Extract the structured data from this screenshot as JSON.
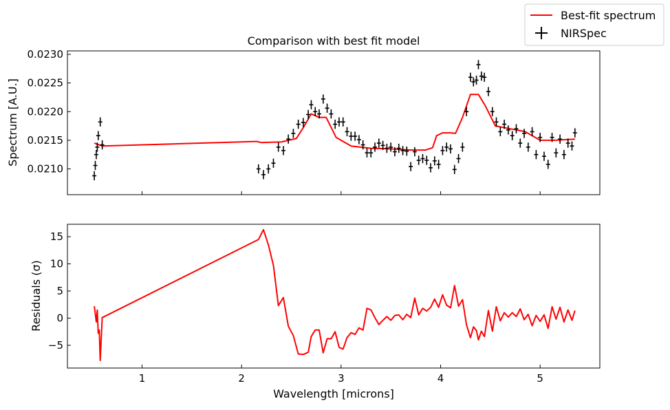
{
  "chart_data": {
    "legend": {
      "placement": "top-right",
      "entries": [
        {
          "label": "Best-fit spectrum",
          "color": "#ff0000",
          "style": "line"
        },
        {
          "label": "NIRSpec",
          "color": "#000000",
          "style": "errorbar"
        }
      ]
    },
    "xlabel": "Wavelength [microns]",
    "xlim": [
      0.25,
      5.6
    ],
    "xticks": [
      1,
      2,
      3,
      4,
      5
    ],
    "xtick_labels": [
      "1",
      "2",
      "3",
      "4",
      "5"
    ],
    "panels": [
      {
        "type": "line",
        "title": "Comparison with best fit model",
        "ylabel": "Spectrum [A.U.]",
        "ylim": [
          0.02055,
          0.02306
        ],
        "yticks": [
          0.021,
          0.0215,
          0.022,
          0.0225,
          0.023
        ],
        "ytick_labels": [
          "0.0210",
          "0.0215",
          "0.0220",
          "0.0225",
          "0.0230"
        ],
        "series": [
          {
            "name": "Best-fit spectrum",
            "color": "#ff0000",
            "x": [
              0.52,
              0.6,
              2.15,
              2.2,
              2.4,
              2.55,
              2.62,
              2.7,
              2.78,
              2.85,
              2.95,
              3.1,
              3.3,
              3.5,
              3.7,
              3.85,
              3.92,
              3.96,
              4.02,
              4.1,
              4.15,
              4.22,
              4.3,
              4.38,
              4.45,
              4.55,
              4.7,
              4.85,
              5.0,
              5.15,
              5.35
            ],
            "y": [
              0.02145,
              0.0214,
              0.02148,
              0.02146,
              0.02147,
              0.02153,
              0.02172,
              0.02196,
              0.0219,
              0.0219,
              0.02155,
              0.0214,
              0.02136,
              0.02135,
              0.02133,
              0.02133,
              0.02137,
              0.02158,
              0.02163,
              0.02163,
              0.02162,
              0.0219,
              0.0223,
              0.0223,
              0.0221,
              0.02175,
              0.0217,
              0.02165,
              0.0215,
              0.0215,
              0.02152
            ]
          },
          {
            "name": "NIRSpec",
            "type": "errorbar",
            "color": "#000000",
            "x": [
              0.52,
              0.53,
              0.54,
              0.55,
              0.56,
              0.58,
              0.6,
              2.17,
              2.22,
              2.27,
              2.32,
              2.37,
              2.42,
              2.47,
              2.52,
              2.57,
              2.62,
              2.67,
              2.7,
              2.74,
              2.78,
              2.82,
              2.86,
              2.9,
              2.94,
              2.98,
              3.02,
              3.06,
              3.1,
              3.14,
              3.18,
              3.22,
              3.26,
              3.3,
              3.34,
              3.38,
              3.42,
              3.46,
              3.5,
              3.54,
              3.58,
              3.62,
              3.66,
              3.7,
              3.74,
              3.78,
              3.82,
              3.86,
              3.9,
              3.94,
              3.98,
              4.02,
              4.06,
              4.1,
              4.14,
              4.18,
              4.22,
              4.26,
              4.3,
              4.33,
              4.36,
              4.38,
              4.41,
              4.44,
              4.48,
              4.52,
              4.56,
              4.6,
              4.64,
              4.68,
              4.72,
              4.76,
              4.8,
              4.84,
              4.88,
              4.92,
              4.96,
              5.0,
              5.04,
              5.08,
              5.12,
              5.16,
              5.2,
              5.24,
              5.28,
              5.32,
              5.35
            ],
            "y": [
              0.02088,
              0.02106,
              0.02125,
              0.02138,
              0.02158,
              0.02182,
              0.02142,
              0.021,
              0.0209,
              0.021,
              0.0211,
              0.02138,
              0.02132,
              0.02152,
              0.02162,
              0.02178,
              0.02181,
              0.02195,
              0.02212,
              0.022,
              0.02196,
              0.02222,
              0.02206,
              0.02196,
              0.02178,
              0.02182,
              0.02182,
              0.02165,
              0.02157,
              0.02157,
              0.02151,
              0.02142,
              0.02128,
              0.02128,
              0.02138,
              0.02145,
              0.02141,
              0.02136,
              0.02138,
              0.0213,
              0.02136,
              0.02132,
              0.02131,
              0.02104,
              0.0213,
              0.02115,
              0.02118,
              0.02115,
              0.02102,
              0.02114,
              0.02108,
              0.02132,
              0.02138,
              0.02135,
              0.02099,
              0.02118,
              0.02138,
              0.022,
              0.0226,
              0.02252,
              0.02255,
              0.02282,
              0.02262,
              0.0226,
              0.02235,
              0.022,
              0.02182,
              0.02165,
              0.02178,
              0.02168,
              0.02158,
              0.0217,
              0.02145,
              0.02162,
              0.02138,
              0.02165,
              0.02125,
              0.02155,
              0.02122,
              0.02108,
              0.02155,
              0.02128,
              0.02152,
              0.02125,
              0.02145,
              0.0214,
              0.02163
            ]
          }
        ]
      },
      {
        "type": "line",
        "title": "",
        "ylabel": "Residuals (σ)",
        "ylim": [
          -9.2,
          17.3
        ],
        "yticks": [
          -5,
          0,
          5,
          10,
          15
        ],
        "ytick_labels": [
          "−5",
          "0",
          "5",
          "10",
          "15"
        ],
        "series": [
          {
            "name": "Residuals",
            "color": "#ff0000",
            "x": [
              0.52,
              0.54,
              0.55,
              0.56,
              0.57,
              0.58,
              0.6,
              2.17,
              2.22,
              2.27,
              2.32,
              2.37,
              2.42,
              2.47,
              2.52,
              2.57,
              2.62,
              2.67,
              2.7,
              2.74,
              2.78,
              2.82,
              2.86,
              2.9,
              2.94,
              2.98,
              3.02,
              3.06,
              3.1,
              3.14,
              3.18,
              3.22,
              3.26,
              3.3,
              3.34,
              3.38,
              3.42,
              3.46,
              3.5,
              3.54,
              3.58,
              3.62,
              3.66,
              3.7,
              3.74,
              3.78,
              3.82,
              3.86,
              3.9,
              3.94,
              3.98,
              4.02,
              4.06,
              4.1,
              4.14,
              4.18,
              4.22,
              4.26,
              4.3,
              4.33,
              4.36,
              4.38,
              4.41,
              4.44,
              4.48,
              4.52,
              4.56,
              4.6,
              4.64,
              4.68,
              4.72,
              4.76,
              4.8,
              4.84,
              4.88,
              4.92,
              4.96,
              5.0,
              5.04,
              5.08,
              5.12,
              5.16,
              5.2,
              5.24,
              5.28,
              5.32,
              5.35
            ],
            "y": [
              2.2,
              -0.7,
              1.5,
              -2.8,
              -2.2,
              -7.8,
              0.1,
              14.5,
              16.3,
              13.5,
              9.7,
              2.3,
              3.8,
              -1.5,
              -3.2,
              -6.6,
              -6.7,
              -6.3,
              -3.4,
              -2.2,
              -2.2,
              -6.4,
              -3.8,
              -3.8,
              -2.5,
              -5.4,
              -5.7,
              -3.6,
              -2.7,
              -3.0,
              -1.8,
              -2.2,
              1.8,
              1.5,
              0.1,
              -1.2,
              -0.4,
              0.3,
              -0.4,
              0.5,
              0.6,
              -0.3,
              0.7,
              0.1,
              3.7,
              0.6,
              1.8,
              1.3,
              2.0,
              3.5,
              2.0,
              4.3,
              2.4,
              1.9,
              6.0,
              2.2,
              3.4,
              -1.2,
              -3.6,
              -1.6,
              -2.3,
              -4.0,
              -2.4,
              -3.4,
              1.4,
              -2.4,
              2.1,
              -0.5,
              1.0,
              0.2,
              1.0,
              0.3,
              1.7,
              -0.3,
              0.7,
              -1.4,
              0.5,
              -0.6,
              0.6,
              -1.9,
              2.1,
              -0.2,
              2.0,
              -0.7,
              1.5,
              -0.4,
              1.4
            ]
          }
        ]
      }
    ]
  }
}
